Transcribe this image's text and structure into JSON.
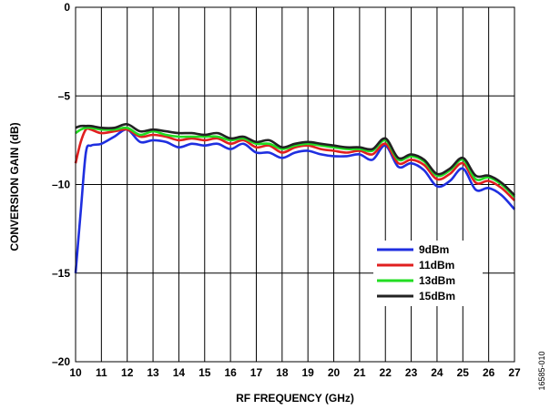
{
  "figure_code": "16585-010",
  "chart_data": {
    "type": "line",
    "xlabel": "RF FREQUENCY (GHz)",
    "ylabel": "CONVERSION GAIN (dB)",
    "xlim": [
      10,
      27
    ],
    "ylim": [
      -20,
      0
    ],
    "x_ticks": [
      10,
      11,
      12,
      13,
      14,
      15,
      16,
      17,
      18,
      19,
      20,
      21,
      22,
      23,
      24,
      25,
      26,
      27
    ],
    "y_ticks": [
      0,
      -5,
      -10,
      -15,
      -20
    ],
    "y_tick_labels": [
      "0",
      "–5",
      "–10",
      "–15",
      "–20"
    ],
    "grid": true,
    "legend_position": "lower-right",
    "x": [
      10.0,
      10.2,
      10.4,
      10.6,
      11.0,
      11.5,
      12.0,
      12.5,
      13.0,
      13.5,
      14.0,
      14.5,
      15.0,
      15.5,
      16.0,
      16.5,
      17.0,
      17.5,
      18.0,
      18.5,
      19.0,
      19.5,
      20.0,
      20.5,
      21.0,
      21.5,
      22.0,
      22.5,
      23.0,
      23.5,
      24.0,
      24.5,
      25.0,
      25.5,
      26.0,
      26.5,
      27.0
    ],
    "series": [
      {
        "name": "9dBm",
        "color": "#1f2fe0",
        "values": [
          -15.0,
          -11.5,
          -8.2,
          -7.8,
          -7.7,
          -7.3,
          -6.9,
          -7.6,
          -7.5,
          -7.6,
          -7.9,
          -7.7,
          -7.8,
          -7.7,
          -8.0,
          -7.7,
          -8.2,
          -8.2,
          -8.5,
          -8.2,
          -8.1,
          -8.3,
          -8.4,
          -8.4,
          -8.3,
          -8.6,
          -7.8,
          -9.0,
          -8.8,
          -9.2,
          -10.1,
          -9.8,
          -9.1,
          -10.3,
          -10.2,
          -10.6,
          -11.4
        ]
      },
      {
        "name": "11dBm",
        "color": "#e01f1f",
        "values": [
          -8.8,
          -7.6,
          -6.9,
          -6.9,
          -7.1,
          -7.0,
          -6.9,
          -7.3,
          -7.2,
          -7.3,
          -7.5,
          -7.4,
          -7.5,
          -7.4,
          -7.7,
          -7.5,
          -7.9,
          -7.8,
          -8.2,
          -7.9,
          -7.8,
          -8.0,
          -8.1,
          -8.2,
          -8.1,
          -8.3,
          -7.7,
          -8.8,
          -8.6,
          -8.9,
          -9.7,
          -9.4,
          -8.8,
          -9.9,
          -9.8,
          -10.2,
          -10.9
        ]
      },
      {
        "name": "13dBm",
        "color": "#22dd22",
        "values": [
          -7.1,
          -6.9,
          -6.8,
          -6.8,
          -6.9,
          -6.9,
          -6.8,
          -7.2,
          -7.0,
          -7.2,
          -7.3,
          -7.3,
          -7.3,
          -7.3,
          -7.5,
          -7.4,
          -7.7,
          -7.7,
          -8.0,
          -7.8,
          -7.7,
          -7.8,
          -7.9,
          -8.0,
          -8.0,
          -8.1,
          -7.5,
          -8.6,
          -8.4,
          -8.7,
          -9.5,
          -9.2,
          -8.6,
          -9.7,
          -9.6,
          -10.0,
          -10.7
        ]
      },
      {
        "name": "15dBm",
        "color": "#222222",
        "values": [
          -6.8,
          -6.7,
          -6.7,
          -6.7,
          -6.8,
          -6.8,
          -6.6,
          -7.0,
          -6.9,
          -7.0,
          -7.1,
          -7.1,
          -7.2,
          -7.1,
          -7.4,
          -7.3,
          -7.6,
          -7.5,
          -7.9,
          -7.7,
          -7.6,
          -7.7,
          -7.8,
          -7.9,
          -7.9,
          -8.0,
          -7.4,
          -8.5,
          -8.3,
          -8.6,
          -9.4,
          -9.1,
          -8.5,
          -9.5,
          -9.5,
          -9.9,
          -10.6
        ]
      }
    ]
  }
}
